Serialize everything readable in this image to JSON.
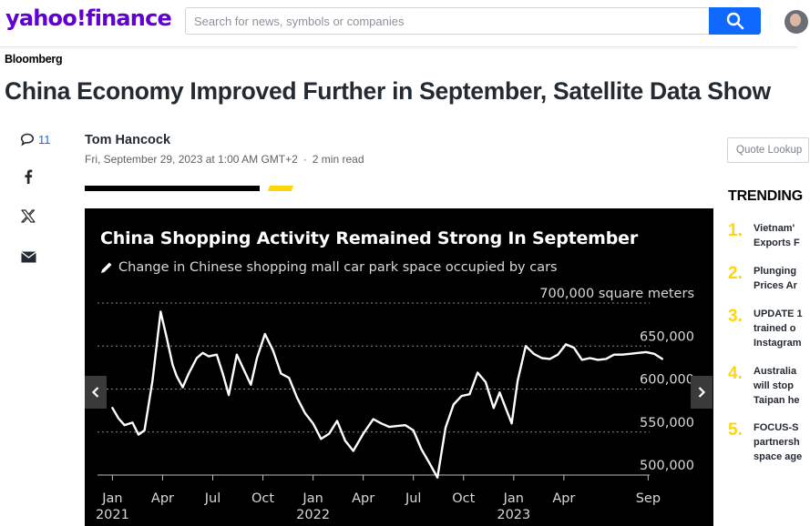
{
  "header": {
    "logo_text": "yahoo!finance",
    "search_placeholder": "Search for news, symbols or companies",
    "search_icon": "search-icon",
    "brand_color": "#6001d2",
    "accent_color": "#0f69ff"
  },
  "article": {
    "source": "Bloomberg",
    "headline": "China Economy Improved Further in September, Satellite Data Show",
    "author": "Tom Hancock",
    "date": "Fri, September 29, 2023 at 1:00 AM GMT+2",
    "read_time": "2 min read"
  },
  "social": {
    "comment_count": "11",
    "comment_icon": "comment-icon",
    "facebook_icon": "facebook-icon",
    "x_icon": "x-icon",
    "mail_icon": "mail-icon"
  },
  "chart_data": {
    "type": "line",
    "title": "China Shopping Activity Remained Strong In September",
    "subtitle": "Change in Chinese shopping mall car park space occupied by cars",
    "ylabel": "square meters",
    "ylim": [
      500000,
      700000
    ],
    "y_ticks": [
      "700,000",
      "650,000",
      "600,000",
      "550,000",
      "500,000"
    ],
    "y_tick_values": [
      700000,
      650000,
      600000,
      550000,
      500000
    ],
    "x_ticks": [
      {
        "label": "Jan",
        "year": "2021",
        "value": 2021.0
      },
      {
        "label": "Apr",
        "year": "",
        "value": 2021.25
      },
      {
        "label": "Jul",
        "year": "",
        "value": 2021.5
      },
      {
        "label": "Oct",
        "year": "",
        "value": 2021.75
      },
      {
        "label": "Jan",
        "year": "2022",
        "value": 2022.0
      },
      {
        "label": "Apr",
        "year": "",
        "value": 2022.25
      },
      {
        "label": "Jul",
        "year": "",
        "value": 2022.5
      },
      {
        "label": "Oct",
        "year": "",
        "value": 2022.75
      },
      {
        "label": "Jan",
        "year": "2023",
        "value": 2023.0
      },
      {
        "label": "Apr",
        "year": "",
        "value": 2023.25
      },
      {
        "label": "Sep",
        "year": "",
        "value": 2023.67
      }
    ],
    "xlim": [
      2020.98,
      2023.85
    ],
    "grid": true,
    "line_color": "#ffffff",
    "series": [
      {
        "name": "",
        "x": [
          2021.0,
          2021.03,
          2021.06,
          2021.1,
          2021.13,
          2021.16,
          2021.2,
          2021.24,
          2021.27,
          2021.3,
          2021.32,
          2021.35,
          2021.38,
          2021.42,
          2021.45,
          2021.48,
          2021.52,
          2021.55,
          2021.58,
          2021.62,
          2021.66,
          2021.69,
          2021.72,
          2021.76,
          2021.8,
          2021.84,
          2021.88,
          2021.92,
          2021.96,
          2022.0,
          2022.04,
          2022.08,
          2022.12,
          2022.16,
          2022.2,
          2022.25,
          2022.3,
          2022.34,
          2022.38,
          2022.42,
          2022.46,
          2022.5,
          2022.54,
          2022.58,
          2022.62,
          2022.66,
          2022.7,
          2022.74,
          2022.78,
          2022.82,
          2022.86,
          2022.9,
          2022.93,
          2022.96,
          2022.99,
          2023.02,
          2023.06,
          2023.1,
          2023.14,
          2023.18,
          2023.22,
          2023.26,
          2023.3,
          2023.34,
          2023.38,
          2023.42,
          2023.46,
          2023.5,
          2023.54,
          2023.58,
          2023.62,
          2023.66,
          2023.7,
          2023.74
        ],
        "values": [
          578000,
          566000,
          558000,
          561000,
          547000,
          552000,
          610000,
          690000,
          660000,
          628000,
          615000,
          602000,
          618000,
          636000,
          642000,
          638000,
          640000,
          618000,
          593000,
          640000,
          620000,
          605000,
          636000,
          664000,
          645000,
          618000,
          613000,
          590000,
          572000,
          560000,
          542000,
          548000,
          563000,
          540000,
          528000,
          548000,
          565000,
          560000,
          556000,
          557000,
          558000,
          552000,
          530000,
          514000,
          497000,
          555000,
          582000,
          592000,
          594000,
          619000,
          608000,
          578000,
          596000,
          578000,
          560000,
          610000,
          650000,
          641000,
          636000,
          635000,
          640000,
          652000,
          648000,
          634000,
          636000,
          634000,
          635000,
          640000,
          640000,
          641000,
          642000,
          643000,
          641000,
          635000
        ]
      }
    ]
  },
  "carousel": {
    "prev_icon": "chevron-left-icon",
    "next_icon": "chevron-right-icon"
  },
  "sidebar": {
    "quote_placeholder": "Quote Lookup",
    "trending_title": "TRENDING",
    "trending": [
      {
        "num": "1.",
        "text": "Vietnam'\nExports F"
      },
      {
        "num": "2.",
        "text": "Plunging\nPrices Ar"
      },
      {
        "num": "3.",
        "text": "UPDATE 1\ntrained o\nInstagram"
      },
      {
        "num": "4.",
        "text": "Australia\nwill stop\nTaipan he"
      },
      {
        "num": "5.",
        "text": "FOCUS-S\npartnersh\nspace age"
      }
    ]
  }
}
